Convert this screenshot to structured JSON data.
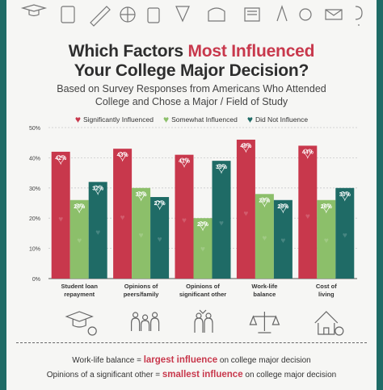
{
  "title": {
    "part1": "Which Factors ",
    "highlight": "Most Influenced",
    "line2": "Your College Major Decision?"
  },
  "subtitle": {
    "line1": "Based on Survey Responses from Americans Who Attended",
    "line2": "College and Chose a Major / Field of Study"
  },
  "legend": [
    {
      "label": "Significantly Influenced",
      "color": "#c8384c"
    },
    {
      "label": "Somewhat Influenced",
      "color": "#8cbf6a"
    },
    {
      "label": "Did Not Influence",
      "color": "#1f6b66"
    }
  ],
  "chart_data": {
    "type": "bar",
    "categories": [
      [
        "Student loan",
        "repayment"
      ],
      [
        "Opinions of",
        "peers/family"
      ],
      [
        "Opinions of",
        "significant other"
      ],
      [
        "Work-life",
        "balance"
      ],
      [
        "Cost of",
        "living"
      ]
    ],
    "series": [
      {
        "name": "Significantly Influenced",
        "values": [
          42,
          43,
          41,
          46,
          44
        ],
        "color": "#c8384c"
      },
      {
        "name": "Somewhat Influenced",
        "values": [
          26,
          30,
          20,
          28,
          26
        ],
        "color": "#8cbf6a"
      },
      {
        "name": "Did Not Influence",
        "values": [
          32,
          27,
          39,
          26,
          30
        ],
        "color": "#1f6b66"
      }
    ],
    "ylim": [
      0,
      50
    ],
    "yticks": [
      0,
      10,
      20,
      30,
      40,
      50
    ],
    "ytick_labels": [
      "0%",
      "10%",
      "20%",
      "30%",
      "40%",
      "50%"
    ],
    "value_suffix": "%",
    "grid": true
  },
  "icons": [
    "graduation-cap-icon",
    "family-icon",
    "couple-icon",
    "balance-scale-icon",
    "house-icon"
  ],
  "footer": {
    "line1_prefix": "Work-life balance = ",
    "line1_emph": "largest influence",
    "line1_suffix": " on college major decision",
    "line2_prefix": "Opinions of a significant other = ",
    "line2_emph": "smallest influence",
    "line2_suffix": " on college major decision"
  }
}
